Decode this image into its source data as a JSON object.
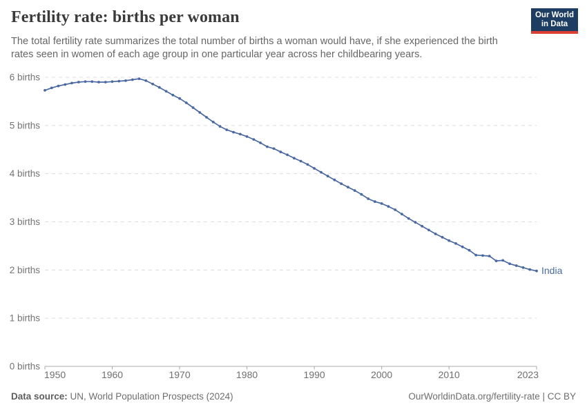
{
  "header": {
    "title": "Fertility rate: births per woman",
    "subtitle": "The total fertility rate summarizes the total number of births a woman would have, if she experienced the birth rates seen in women of each age group in one particular year across her childbearing years.",
    "logo": {
      "line1": "Our World",
      "line2": "in Data"
    }
  },
  "chart_data": {
    "type": "line",
    "title": "Fertility rate: births per woman",
    "entity": "India",
    "line_color": "#4a69a2",
    "ylabel_suffix": " births",
    "ylim": [
      0,
      6
    ],
    "xlim": [
      1950,
      2023
    ],
    "y_ticks": [
      0,
      1,
      2,
      3,
      4,
      5,
      6
    ],
    "y_tick_labels": [
      "0 births",
      "1 births",
      "2 births",
      "3 births",
      "4 births",
      "5 births",
      "6 births"
    ],
    "x_ticks": [
      1950,
      1960,
      1970,
      1980,
      1990,
      2000,
      2010,
      2023
    ],
    "grid": "horizontal-dashed",
    "legend_position": "end-of-line-label",
    "x": [
      1950,
      1951,
      1952,
      1953,
      1954,
      1955,
      1956,
      1957,
      1958,
      1959,
      1960,
      1961,
      1962,
      1963,
      1964,
      1965,
      1966,
      1967,
      1968,
      1969,
      1970,
      1971,
      1972,
      1973,
      1974,
      1975,
      1976,
      1977,
      1978,
      1979,
      1980,
      1981,
      1982,
      1983,
      1984,
      1985,
      1986,
      1987,
      1988,
      1989,
      1990,
      1991,
      1992,
      1993,
      1994,
      1995,
      1996,
      1997,
      1998,
      1999,
      2000,
      2001,
      2002,
      2003,
      2004,
      2005,
      2006,
      2007,
      2008,
      2009,
      2010,
      2011,
      2012,
      2013,
      2014,
      2015,
      2016,
      2017,
      2018,
      2019,
      2020,
      2021,
      2022,
      2023
    ],
    "values": [
      5.73,
      5.78,
      5.82,
      5.85,
      5.88,
      5.9,
      5.91,
      5.91,
      5.9,
      5.9,
      5.91,
      5.92,
      5.93,
      5.95,
      5.97,
      5.93,
      5.86,
      5.79,
      5.71,
      5.63,
      5.56,
      5.47,
      5.37,
      5.27,
      5.17,
      5.07,
      4.98,
      4.91,
      4.86,
      4.82,
      4.77,
      4.71,
      4.64,
      4.56,
      4.52,
      4.45,
      4.39,
      4.32,
      4.26,
      4.19,
      4.11,
      4.03,
      3.95,
      3.87,
      3.79,
      3.72,
      3.65,
      3.57,
      3.48,
      3.42,
      3.38,
      3.32,
      3.25,
      3.16,
      3.07,
      2.99,
      2.91,
      2.83,
      2.75,
      2.68,
      2.61,
      2.55,
      2.48,
      2.41,
      2.31,
      2.3,
      2.29,
      2.19,
      2.2,
      2.13,
      2.09,
      2.05,
      2.01,
      1.98
    ]
  },
  "footer": {
    "source_label": "Data source:",
    "source_text": " UN, World Population Prospects (2024)",
    "right_text": "OurWorldinData.org/fertility-rate | CC BY"
  }
}
